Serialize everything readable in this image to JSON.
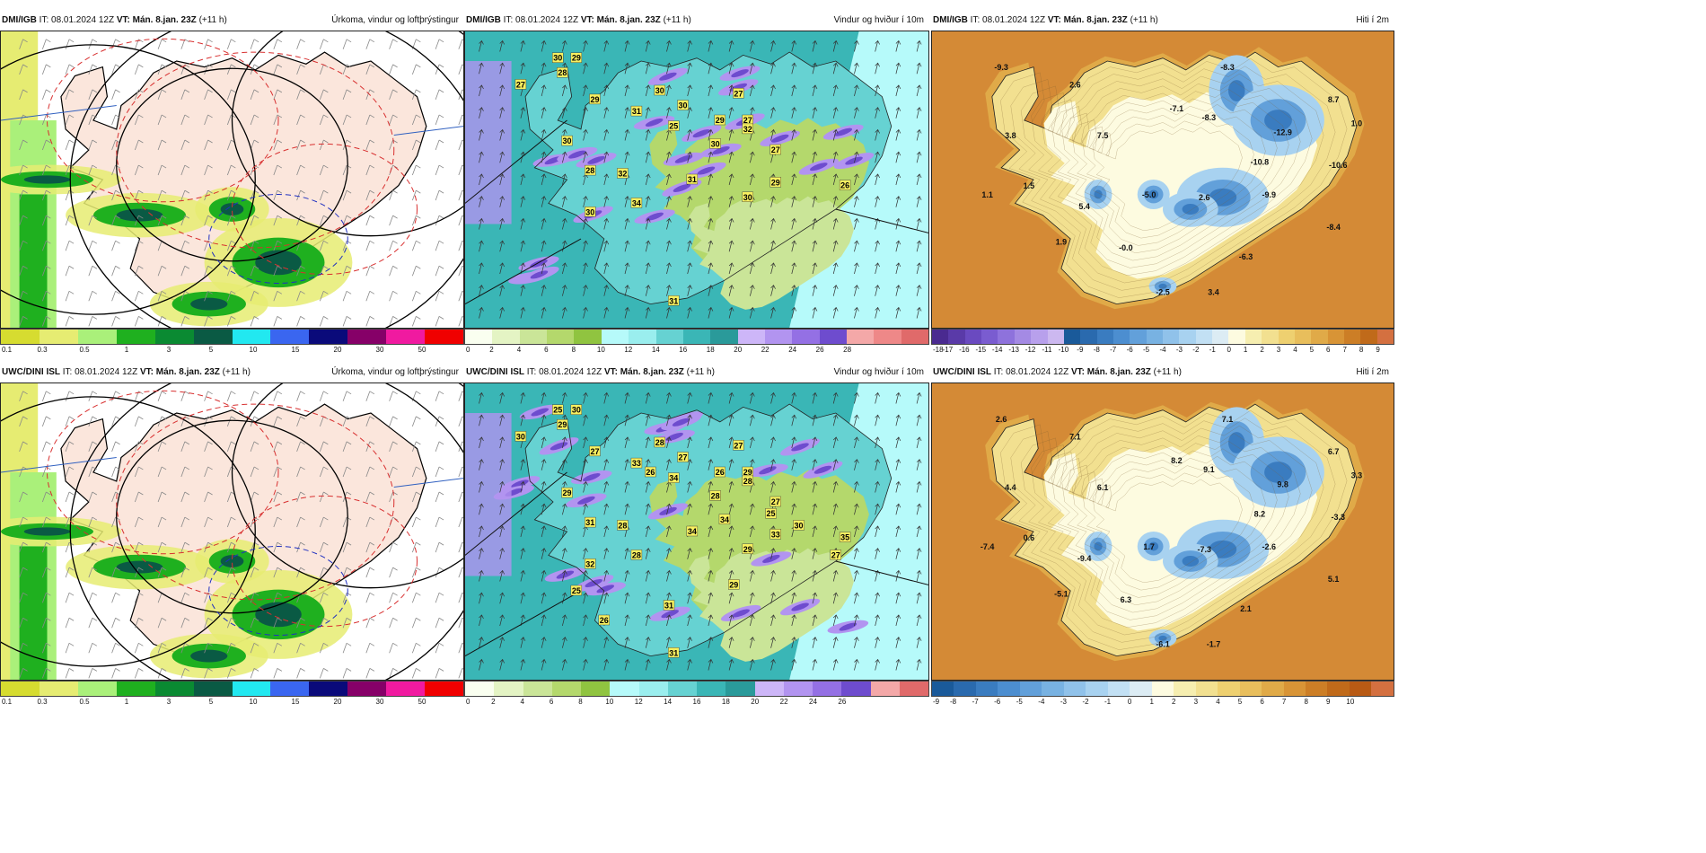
{
  "header_init": "IT: 08.01.2024 12Z",
  "header_valid": "VT: Mán. 8.jan. 23Z",
  "header_offset": "(+11 h)",
  "rows": [
    {
      "model": "DMI/IGB",
      "panels": [
        {
          "kind": "precip",
          "title": "Úrkoma, vindur og loftþrýstingur",
          "scale_ticks": [
            "0.1",
            "0.3",
            "0.5",
            "1",
            "3",
            "5",
            "10",
            "15",
            "20",
            "30",
            "50"
          ],
          "scale_colors": [
            "#d6dc30",
            "#e6ec72",
            "#aaf07a",
            "#1fb01f",
            "#0a8a32",
            "#0a5a44",
            "#22e8f0",
            "#3a66f0",
            "#0a0a7a",
            "#860068",
            "#f01aa0",
            "#f00000"
          ]
        },
        {
          "kind": "wind",
          "title": "Vindur og hviður í 10m",
          "scale_ticks": [
            "0",
            "2",
            "4",
            "6",
            "8",
            "10",
            "12",
            "14",
            "16",
            "18",
            "20",
            "22",
            "24",
            "26",
            "28"
          ],
          "scale_colors": [
            "#fafff0",
            "#e4f4c4",
            "#cae598",
            "#b4d86c",
            "#90c440",
            "#b6fafa",
            "#9aeeee",
            "#66d2d2",
            "#3ab6b6",
            "#2a9a9a",
            "#cdb6f8",
            "#b294f0",
            "#9470e4",
            "#6e4cce",
            "#f4a8a8",
            "#ee8888",
            "#e06a6a"
          ],
          "labels": [
            "30",
            "29",
            "27",
            "28",
            "30",
            "29",
            "30",
            "25",
            "29",
            "27",
            "27",
            "30",
            "32",
            "30",
            "31",
            "32",
            "27",
            "31",
            "29",
            "28",
            "30",
            "34",
            "26",
            "30",
            "31"
          ]
        },
        {
          "kind": "temp",
          "title": "Hiti í 2m",
          "scale_ticks": [
            "-18",
            "-17",
            "-16",
            "-15",
            "-14",
            "-13",
            "-12",
            "-11",
            "-10",
            "-9",
            "-8",
            "-7",
            "-6",
            "-5",
            "-4",
            "-3",
            "-2",
            "-1",
            "0",
            "1",
            "2",
            "3",
            "4",
            "5",
            "6",
            "7",
            "8",
            "9"
          ],
          "scale_colors": [
            "#4a2a90",
            "#5a3aa8",
            "#6a4ac0",
            "#7a5cd0",
            "#8e72dc",
            "#a48ae4",
            "#b8a0ec",
            "#ccb8f0",
            "#1a5a9a",
            "#2a6aae",
            "#3a7cc0",
            "#4c8ed0",
            "#62a0da",
            "#78b2e2",
            "#90c2ea",
            "#a8d2f0",
            "#c2e0f4",
            "#dcecf4",
            "#fdfbe0",
            "#f6eeb0",
            "#f2e090",
            "#eed070",
            "#e8be5c",
            "#e0aa48",
            "#d89436",
            "#cc7e26",
            "#c06a1a",
            "#d47040"
          ],
          "labels": [
            "-9.3",
            "2.6",
            "-8.3",
            "8.7",
            "-7.1",
            "-8.3",
            "1.0",
            "-12.9",
            "3.8",
            "7.5",
            "-10.8",
            "-10.6",
            "1.1",
            "1.5",
            "-5.0",
            "2.6",
            "-9.9",
            "5.4",
            "-8.4",
            "1.9",
            "-0.0",
            "-6.3",
            "-2.5",
            "3.4"
          ]
        }
      ]
    },
    {
      "model": "UWC/DINI ISL",
      "panels": [
        {
          "kind": "precip",
          "title": "Úrkoma, vindur og loftþrýstingur",
          "scale_ticks": [
            "0.1",
            "0.3",
            "0.5",
            "1",
            "3",
            "5",
            "10",
            "15",
            "20",
            "30",
            "50"
          ],
          "scale_colors": [
            "#d6dc30",
            "#e6ec72",
            "#aaf07a",
            "#1fb01f",
            "#0a8a32",
            "#0a5a44",
            "#22e8f0",
            "#3a66f0",
            "#0a0a7a",
            "#860068",
            "#f01aa0",
            "#f00000"
          ]
        },
        {
          "kind": "wind",
          "title": "Vindur og hviður í 10m",
          "scale_ticks": [
            "0",
            "2",
            "4",
            "6",
            "8",
            "10",
            "12",
            "14",
            "16",
            "18",
            "20",
            "22",
            "24",
            "26"
          ],
          "scale_colors": [
            "#fafff0",
            "#e4f4c4",
            "#cae598",
            "#b4d86c",
            "#90c440",
            "#b6fafa",
            "#9aeeee",
            "#66d2d2",
            "#3ab6b6",
            "#2a9a9a",
            "#cdb6f8",
            "#b294f0",
            "#9470e4",
            "#6e4cce",
            "#f4a8a8",
            "#e06a6a"
          ],
          "labels": [
            "25",
            "30",
            "30",
            "29",
            "28",
            "27",
            "27",
            "34",
            "26",
            "27",
            "29",
            "28",
            "28",
            "29",
            "33",
            "28",
            "27",
            "34",
            "33",
            "31",
            "29",
            "28",
            "35",
            "32",
            "31",
            "26",
            "25",
            "30",
            "34",
            "25",
            "29",
            "27",
            "26",
            "31"
          ]
        },
        {
          "kind": "temp",
          "title": "Hiti í 2m",
          "scale_ticks": [
            "-9",
            "-8",
            "-7",
            "-6",
            "-5",
            "-4",
            "-3",
            "-2",
            "-1",
            "0",
            "1",
            "2",
            "3",
            "4",
            "5",
            "6",
            "7",
            "8",
            "9",
            "10"
          ],
          "scale_colors": [
            "#1a5a9a",
            "#2a6aae",
            "#3a7cc0",
            "#4c8ed0",
            "#62a0da",
            "#78b2e2",
            "#90c2ea",
            "#a8d2f0",
            "#c2e0f4",
            "#dcecf4",
            "#fdfbe0",
            "#f6eeb0",
            "#f2e090",
            "#eed070",
            "#e8be5c",
            "#e0aa48",
            "#d89436",
            "#cc7e26",
            "#c06a1a",
            "#b85a14",
            "#d47040"
          ],
          "labels": [
            "2.6",
            "7.1",
            "7.1",
            "6.7",
            "8.2",
            "9.1",
            "3.3",
            "9.8",
            "4.4",
            "6.1",
            "8.2",
            "-3.3",
            "-7.4",
            "0.6",
            "1.7",
            "-7.3",
            "-2.6",
            "-9.4",
            "5.1",
            "-5.1",
            "6.3",
            "2.1",
            "-6.1",
            "-1.7"
          ]
        }
      ]
    }
  ]
}
